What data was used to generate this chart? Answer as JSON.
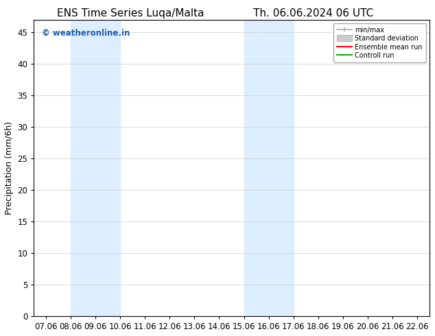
{
  "title_left": "ENS Time Series Luqa/Malta",
  "title_right": "Th. 06.06.2024 06 UTC",
  "ylabel": "Precipitation (mm/6h)",
  "x_labels": [
    "07.06",
    "08.06",
    "09.06",
    "10.06",
    "11.06",
    "12.06",
    "13.06",
    "14.06",
    "15.06",
    "16.06",
    "17.06",
    "18.06",
    "19.06",
    "20.06",
    "21.06",
    "22.06"
  ],
  "x_values": [
    0,
    1,
    2,
    3,
    4,
    5,
    6,
    7,
    8,
    9,
    10,
    11,
    12,
    13,
    14,
    15
  ],
  "ylim": [
    0,
    47
  ],
  "yticks": [
    0,
    5,
    10,
    15,
    20,
    25,
    30,
    35,
    40,
    45
  ],
  "shaded_regions": [
    {
      "xmin": 1,
      "xmax": 3,
      "color": "#ddeeff"
    },
    {
      "xmin": 8,
      "xmax": 10,
      "color": "#ddeeff"
    }
  ],
  "watermark_text": "© weatheronline.in",
  "watermark_color": "#1a5faf",
  "legend_items": [
    {
      "label": "min/max",
      "color": "#999999",
      "type": "errorbar"
    },
    {
      "label": "Standard deviation",
      "color": "#cccccc",
      "type": "bar"
    },
    {
      "label": "Ensemble mean run",
      "color": "#ff0000",
      "type": "line"
    },
    {
      "label": "Controll run",
      "color": "#00bb00",
      "type": "line"
    }
  ],
  "background_color": "#ffffff",
  "plot_bg_color": "#ffffff",
  "grid_color": "#cccccc",
  "title_fontsize": 11,
  "label_fontsize": 9,
  "tick_fontsize": 8.5
}
